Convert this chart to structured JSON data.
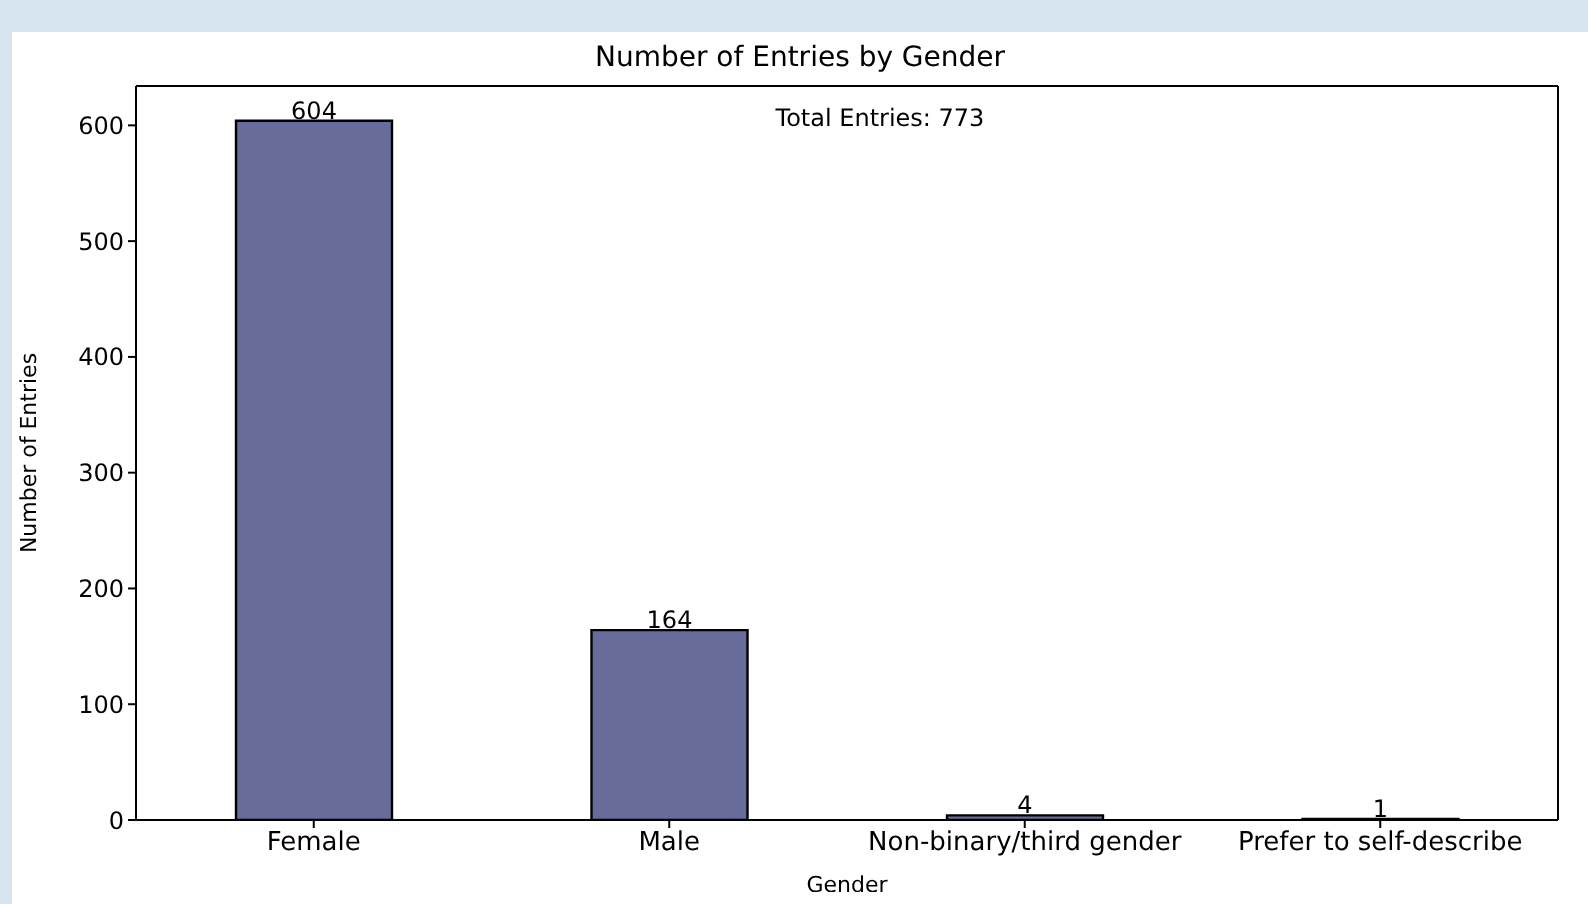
{
  "chart_data": {
    "type": "bar",
    "title": "Number of Entries by Gender",
    "xlabel": "Gender",
    "ylabel": "Number of Entries",
    "categories": [
      "Female",
      "Male",
      "Non-binary/third gender",
      "Prefer to self-describe"
    ],
    "values": [
      604,
      164,
      4,
      1
    ],
    "color": "#686c9a",
    "ylim": [
      0,
      634
    ],
    "yticks": [
      0,
      100,
      200,
      300,
      400,
      500,
      600
    ],
    "annotations": [
      "Total Entries: 773"
    ],
    "data_labels": true
  }
}
